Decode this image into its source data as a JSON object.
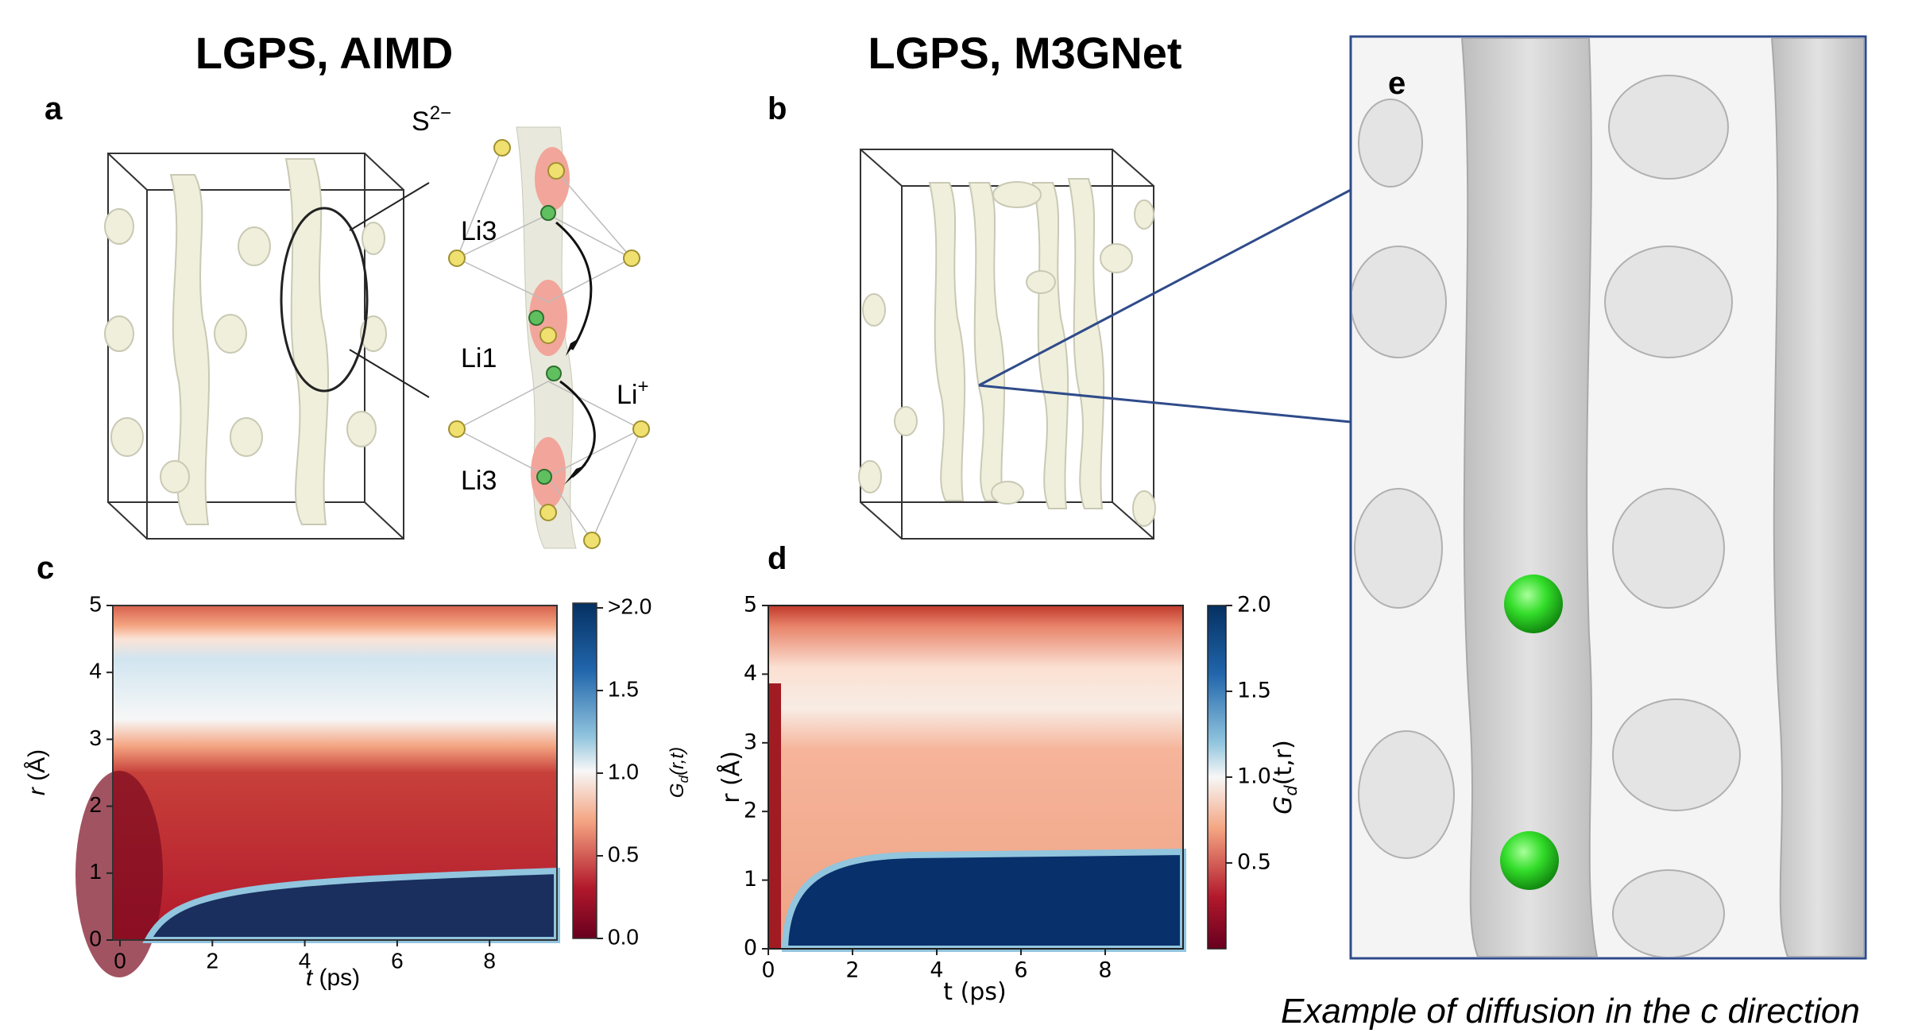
{
  "titles": [
    "LGPS, AIMD",
    "LGPS, M3GNet"
  ],
  "panel_labels": [
    "a",
    "b",
    "c",
    "d",
    "e"
  ],
  "panel_a": {
    "labels": [
      {
        "base": "S",
        "sup": "2−"
      },
      {
        "base": "Li3"
      },
      {
        "base": "Li1"
      },
      {
        "base": "Li",
        "sup": "+"
      },
      {
        "base": "Li3"
      }
    ]
  },
  "panel_c": {
    "xlabel_italic": "t",
    "xlabel_rest": " (ps)",
    "ylabel_italic": "r",
    "ylabel_rest": " (Å)",
    "xticks": [
      "0",
      "2",
      "4",
      "6",
      "8"
    ],
    "yticks": [
      "0",
      "1",
      "2",
      "3",
      "4",
      "5"
    ],
    "colorbar_label": {
      "G": "G",
      "sub": "d",
      "args": "(r,t)"
    },
    "colorbar_ticks": [
      "0.0",
      "0.5",
      "1.0",
      "1.5",
      ">2.0"
    ]
  },
  "panel_d": {
    "xlabel": "t (ps)",
    "ylabel": "r (Å)",
    "xticks": [
      "0",
      "2",
      "4",
      "6",
      "8"
    ],
    "yticks": [
      "0",
      "1",
      "2",
      "3",
      "4",
      "5"
    ],
    "colorbar_label": {
      "G": "G",
      "sub": "d",
      "args": "(t,r)"
    },
    "colorbar_ticks": [
      "0.5",
      "1.0",
      "1.5",
      "2.0"
    ]
  },
  "caption": "Example of diffusion in the c direction"
}
